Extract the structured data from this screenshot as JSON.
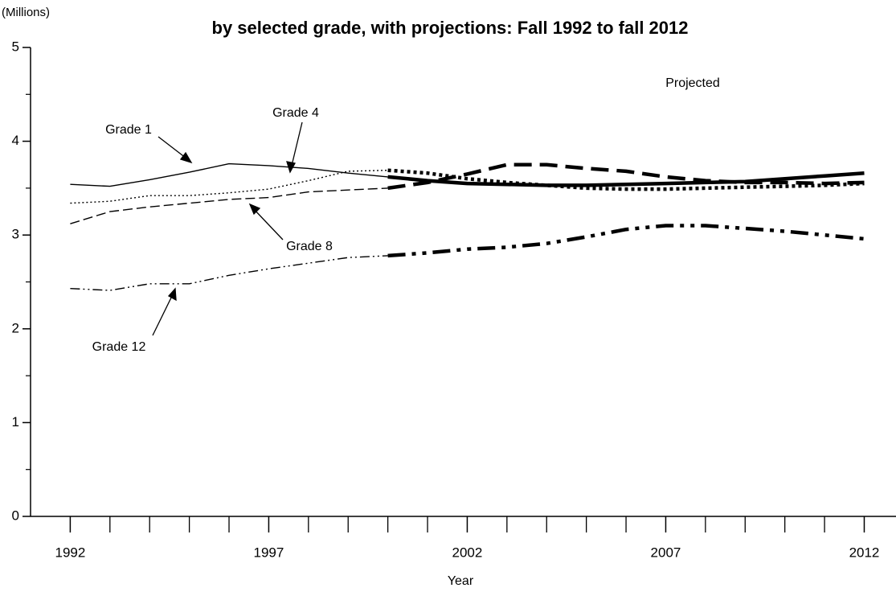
{
  "chart_data": {
    "type": "line",
    "title": "by selected grade, with projections: Fall 1992 to fall 2012",
    "y_unit": "(Millions)",
    "x_label": "Year",
    "annotation": "Projected",
    "projected_from": 2000,
    "x": [
      1992,
      1993,
      1994,
      1995,
      1996,
      1997,
      1998,
      1999,
      2000,
      2001,
      2002,
      2003,
      2004,
      2005,
      2006,
      2007,
      2008,
      2009,
      2010,
      2011,
      2012
    ],
    "series": [
      {
        "name": "Grade 1",
        "color": "#000000",
        "dash": "solid",
        "values": [
          3.54,
          3.52,
          3.59,
          3.67,
          3.76,
          3.74,
          3.71,
          3.66,
          3.62,
          3.58,
          3.55,
          3.54,
          3.53,
          3.53,
          3.54,
          3.55,
          3.56,
          3.57,
          3.6,
          3.63,
          3.66
        ]
      },
      {
        "name": "Grade 4",
        "color": "#000000",
        "dash": "dotted",
        "values": [
          3.34,
          3.36,
          3.42,
          3.42,
          3.45,
          3.49,
          3.58,
          3.68,
          3.69,
          3.66,
          3.6,
          3.56,
          3.53,
          3.5,
          3.49,
          3.49,
          3.5,
          3.51,
          3.52,
          3.53,
          3.55
        ]
      },
      {
        "name": "Grade 8",
        "color": "#000000",
        "dash": "dashed",
        "values": [
          3.12,
          3.25,
          3.3,
          3.34,
          3.38,
          3.4,
          3.46,
          3.48,
          3.5,
          3.56,
          3.65,
          3.75,
          3.75,
          3.71,
          3.68,
          3.62,
          3.58,
          3.56,
          3.56,
          3.55,
          3.56
        ]
      },
      {
        "name": "Grade 12",
        "color": "#000000",
        "dash": "dashdot",
        "values": [
          2.43,
          2.41,
          2.48,
          2.48,
          2.57,
          2.64,
          2.7,
          2.76,
          2.78,
          2.81,
          2.85,
          2.87,
          2.91,
          2.98,
          3.06,
          3.1,
          3.1,
          3.07,
          3.04,
          3.0,
          2.96
        ]
      }
    ],
    "xlim": [
      1991,
      2012.8
    ],
    "xticks": [
      1992,
      1997,
      2002,
      2007,
      2012
    ],
    "xminorticks": [
      1993,
      1994,
      1995,
      1996,
      1998,
      1999,
      2000,
      2001,
      2003,
      2004,
      2005,
      2006,
      2008,
      2009,
      2010,
      2011
    ],
    "ylim": [
      0,
      5
    ],
    "yticks": [
      0,
      1,
      2,
      3,
      4,
      5
    ],
    "yminorticks": [
      0.5,
      1.5,
      2.5,
      3.5,
      4.5
    ],
    "grid": false
  }
}
